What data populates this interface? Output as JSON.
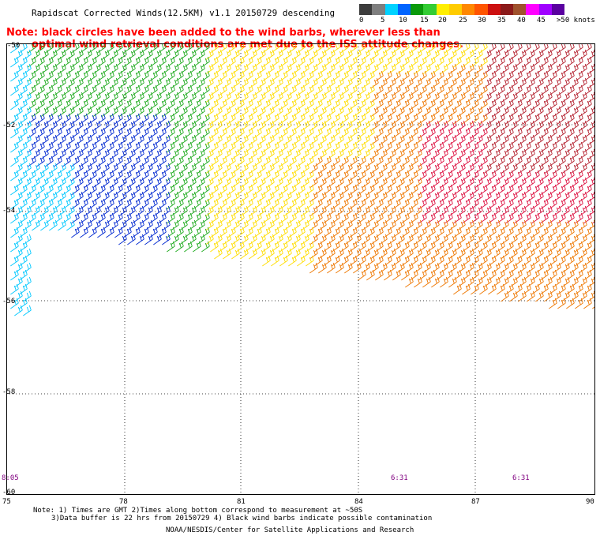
{
  "title": "Rapidscat Corrected Winds(12.5KM) v1.1 20150729 descending",
  "note_line1": "Note: black circles have been added to the wind barbs, wherever less than",
  "note_line2": "optimal wind retrieval conditions are met due to the ISS attitude changes.",
  "legend": {
    "labels": [
      "0",
      "5",
      "10",
      "15",
      "20",
      "25",
      "30",
      "35",
      "40",
      "45",
      ">50 knots"
    ],
    "colors": [
      "#3c3c3c",
      "#7f7f7f",
      "#00d2ff",
      "#0064ff",
      "#0a9a0a",
      "#33cc33",
      "#ffee00",
      "#ffcc00",
      "#ff8800",
      "#ff5500",
      "#cc1010",
      "#8b1a1a",
      "#a0522d",
      "#ff00ff",
      "#a000ff",
      "#5a00a0"
    ]
  },
  "axes": {
    "lat_labels": [
      "-50",
      "-52",
      "-54",
      "-56",
      "-58",
      "-60"
    ],
    "lon_labels": [
      "75",
      "78",
      "81",
      "84",
      "87",
      "90"
    ]
  },
  "times": [
    "8:05",
    "6:31",
    "6:31"
  ],
  "footnote_line1": "Note: 1) Times are GMT 2)Times along bottom correspond to measurement at ~50S",
  "footnote_line2": "3)Data buffer is 22 hrs from 20150729 4) Black wind barbs indicate possible contamination",
  "credit": "NOAA/NESDIS/Center for Satellite Applications and Research"
}
